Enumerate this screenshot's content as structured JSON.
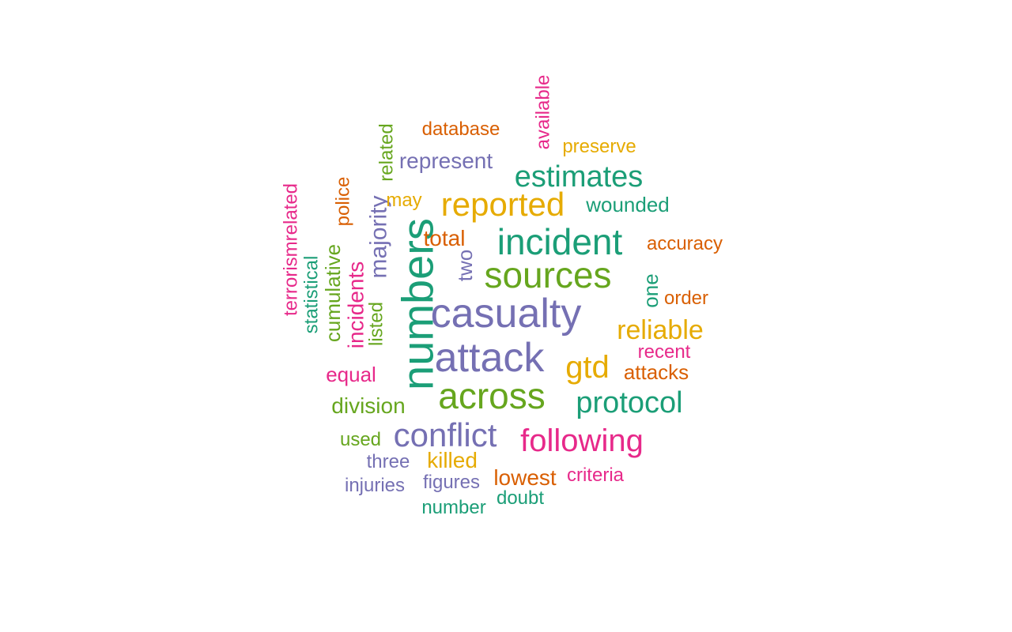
{
  "colors": {
    "teal": "#1b9e77",
    "orange": "#d95f02",
    "purple": "#7570b3",
    "pink": "#e7298a",
    "green": "#66a61e",
    "gold": "#e6ab02"
  },
  "words": [
    {
      "text": "numbers",
      "color": "teal"
    },
    {
      "text": "casualty",
      "color": "purple"
    },
    {
      "text": "attack",
      "color": "purple"
    },
    {
      "text": "across",
      "color": "green"
    },
    {
      "text": "sources",
      "color": "green"
    },
    {
      "text": "incident",
      "color": "teal"
    },
    {
      "text": "reported",
      "color": "gold"
    },
    {
      "text": "estimates",
      "color": "teal"
    },
    {
      "text": "following",
      "color": "pink"
    },
    {
      "text": "conflict",
      "color": "purple"
    },
    {
      "text": "protocol",
      "color": "teal"
    },
    {
      "text": "reliable",
      "color": "gold"
    },
    {
      "text": "gtd",
      "color": "gold"
    },
    {
      "text": "majority",
      "color": "purple"
    },
    {
      "text": "incidents",
      "color": "pink"
    },
    {
      "text": "cumulative",
      "color": "green"
    },
    {
      "text": "represent",
      "color": "purple"
    },
    {
      "text": "wounded",
      "color": "teal"
    },
    {
      "text": "accuracy",
      "color": "orange"
    },
    {
      "text": "total",
      "color": "orange"
    },
    {
      "text": "two",
      "color": "purple"
    },
    {
      "text": "one",
      "color": "teal"
    },
    {
      "text": "order",
      "color": "orange"
    },
    {
      "text": "recent",
      "color": "pink"
    },
    {
      "text": "attacks",
      "color": "orange"
    },
    {
      "text": "database",
      "color": "orange"
    },
    {
      "text": "preserve",
      "color": "gold"
    },
    {
      "text": "available",
      "color": "pink"
    },
    {
      "text": "related",
      "color": "green"
    },
    {
      "text": "may",
      "color": "gold"
    },
    {
      "text": "police",
      "color": "orange"
    },
    {
      "text": "terrorismrelated",
      "color": "pink"
    },
    {
      "text": "statistical",
      "color": "teal"
    },
    {
      "text": "listed",
      "color": "green"
    },
    {
      "text": "equal",
      "color": "pink"
    },
    {
      "text": "division",
      "color": "green"
    },
    {
      "text": "used",
      "color": "green"
    },
    {
      "text": "three",
      "color": "purple"
    },
    {
      "text": "killed",
      "color": "gold"
    },
    {
      "text": "injuries",
      "color": "purple"
    },
    {
      "text": "figures",
      "color": "purple"
    },
    {
      "text": "lowest",
      "color": "orange"
    },
    {
      "text": "criteria",
      "color": "pink"
    },
    {
      "text": "doubt",
      "color": "teal"
    },
    {
      "text": "number",
      "color": "teal"
    }
  ]
}
